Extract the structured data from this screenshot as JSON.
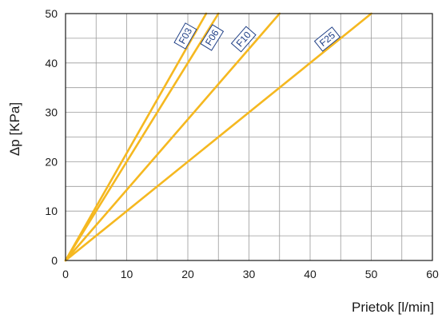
{
  "chart_data": {
    "type": "line",
    "xlabel": "Prietok [l/min]",
    "ylabel": "Δp [KPa]",
    "xlim": [
      0,
      60
    ],
    "ylim": [
      0,
      50
    ],
    "xticks": [
      0,
      10,
      20,
      30,
      40,
      50,
      60
    ],
    "yticks": [
      0,
      10,
      20,
      30,
      40,
      50
    ],
    "grid": true,
    "series": [
      {
        "name": "F03",
        "x": [
          0,
          23
        ],
        "y": [
          0,
          50
        ]
      },
      {
        "name": "F06",
        "x": [
          0,
          25
        ],
        "y": [
          0,
          50
        ]
      },
      {
        "name": "F10",
        "x": [
          0,
          35
        ],
        "y": [
          0,
          50
        ]
      },
      {
        "name": "F25",
        "x": [
          0,
          50
        ],
        "y": [
          0,
          50
        ]
      }
    ],
    "colors": {
      "line": "#f5b820",
      "tag_border": "#1f3f86",
      "tag_text": "#1f3f86"
    }
  }
}
